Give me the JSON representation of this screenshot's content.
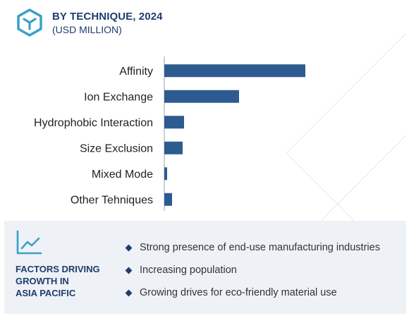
{
  "header": {
    "title": "BY TECHNIQUE, 2024",
    "subtitle": "(USD MILLION)",
    "logo_icon": "hexagon-cube-icon"
  },
  "chart_data": {
    "type": "bar",
    "orientation": "horizontal",
    "title": "BY TECHNIQUE, 2024",
    "subtitle": "(USD MILLION)",
    "categories": [
      "Affinity",
      "Ion Exchange",
      "Hydrophobic Interaction",
      "Size Exclusion",
      "Mixed Mode",
      "Other Tehniques"
    ],
    "values": [
      100,
      53,
      14,
      13,
      2,
      5.5
    ],
    "xlabel": "",
    "ylabel": "",
    "xlim": [
      0,
      100
    ],
    "grid": false,
    "legend": "none",
    "color": "#2e5b8f"
  },
  "footer": {
    "trend_icon": "trend-line-icon",
    "factor_title_lines": [
      "FACTORS DRIVING",
      "GROWTH IN",
      "ASIA PACIFIC"
    ],
    "bullets": [
      "Strong presence of end-use manufacturing industries",
      "Increasing population",
      "Growing drives for eco-friendly material use"
    ]
  },
  "colors": {
    "brand": "#1f3d6e",
    "bar": "#2e5b8f",
    "footer_bg": "#eef1f6",
    "accent": "#3aa0c7"
  }
}
